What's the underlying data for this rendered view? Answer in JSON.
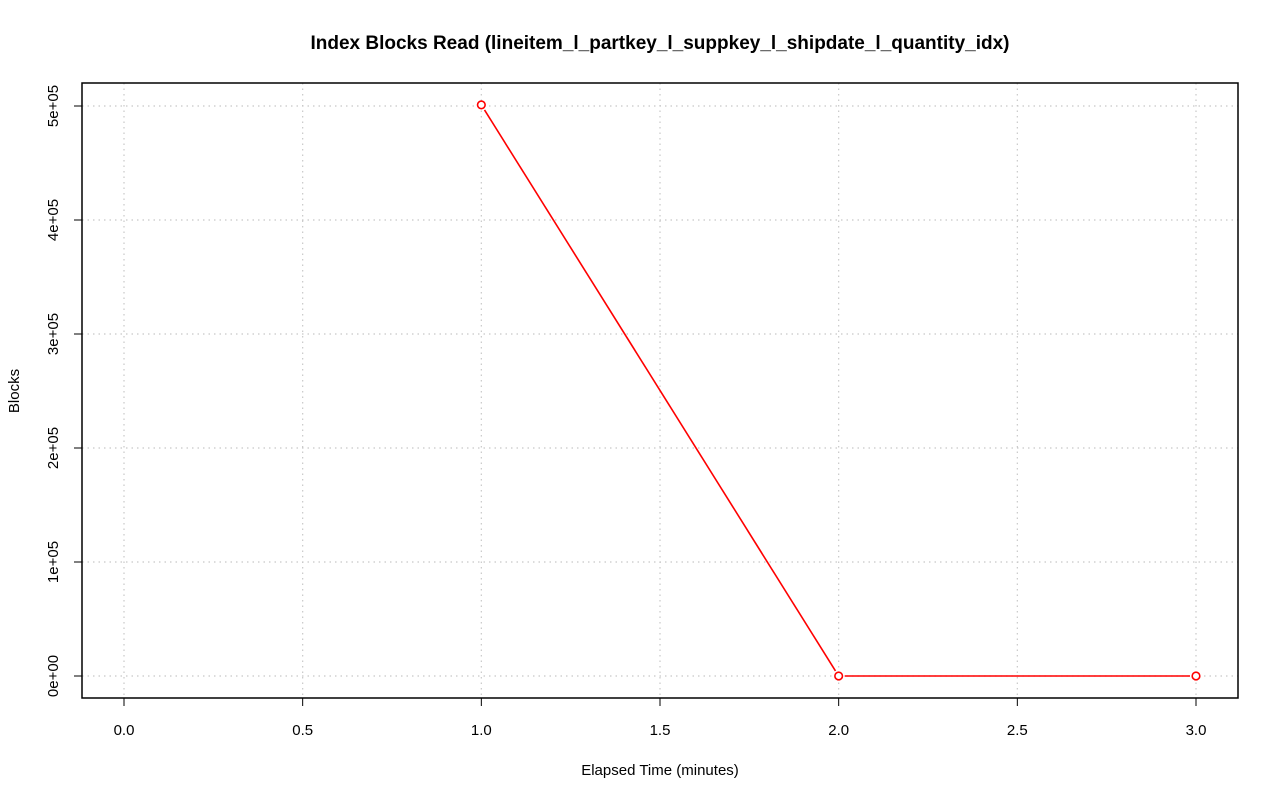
{
  "chart_data": {
    "type": "line",
    "title": "Index Blocks Read (lineitem_l_partkey_l_suppkey_l_shipdate_l_quantity_idx)",
    "xlabel": "Elapsed Time (minutes)",
    "ylabel": "Blocks",
    "xlim": [
      0.0,
      3.0
    ],
    "ylim": [
      0,
      500000
    ],
    "x_ticks": [
      0.0,
      0.5,
      1.0,
      1.5,
      2.0,
      2.5,
      3.0
    ],
    "x_tick_labels": [
      "0.0",
      "0.5",
      "1.0",
      "1.5",
      "2.0",
      "2.5",
      "3.0"
    ],
    "y_ticks": [
      0,
      100000,
      200000,
      300000,
      400000,
      500000
    ],
    "y_tick_labels": [
      "0e+00",
      "1e+05",
      "2e+05",
      "3e+05",
      "4e+05",
      "5e+05"
    ],
    "grid": true,
    "grid_style": "dotted",
    "series": [
      {
        "color": "#ff0000",
        "marker": "open-circle",
        "x": [
          1.0,
          2.0,
          3.0
        ],
        "y": [
          501000,
          0,
          0
        ]
      }
    ]
  }
}
